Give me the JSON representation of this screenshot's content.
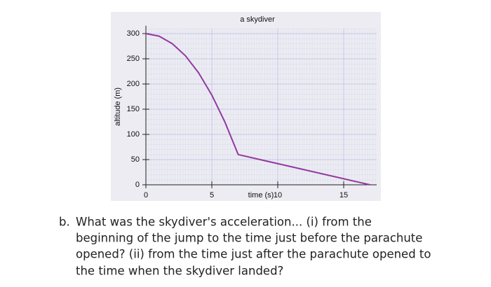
{
  "chart_data": {
    "type": "line",
    "title": "a skydiver",
    "xlabel": "time (s)",
    "ylabel": "altitude (m)",
    "x": [
      0,
      1,
      2,
      3,
      4,
      5,
      6,
      7,
      17
    ],
    "series": [
      {
        "color": "#93399f",
        "values": [
          300,
          295,
          280,
          256,
          222,
          178,
          124,
          60,
          0
        ]
      }
    ],
    "xlim": [
      0,
      17.5
    ],
    "xticks": [
      0,
      5,
      10,
      15
    ],
    "ylim": [
      0,
      310
    ],
    "yticks": [
      0,
      50,
      100,
      150,
      200,
      250,
      300
    ],
    "grid": true
  },
  "question": {
    "label": "b.",
    "lines": [
      "What was the skydiver's acceleration... (i) from the",
      "beginning of the jump to the time just before the parachute",
      "opened? (ii) from the time just after the parachute opened to",
      "the time when the skydiver landed?"
    ]
  }
}
